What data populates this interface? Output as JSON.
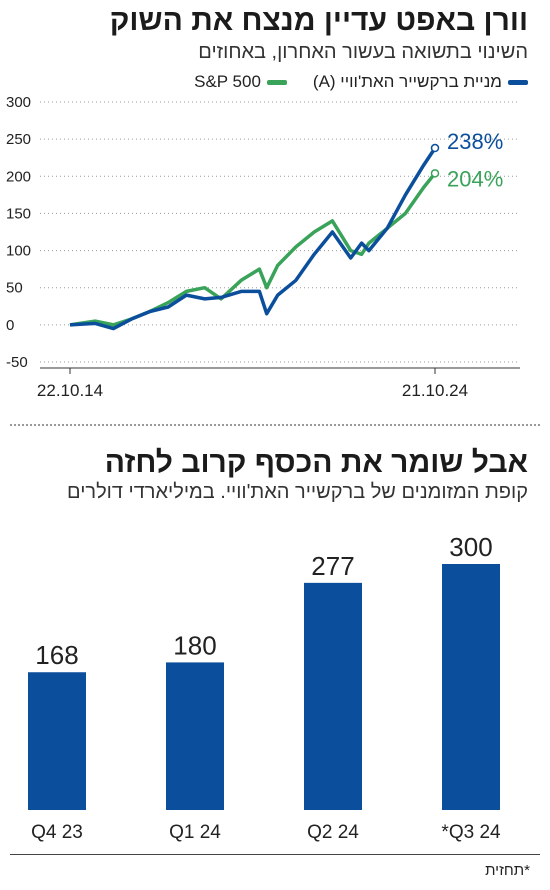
{
  "chart_top": {
    "title": "וורן באפט עדיין מנצח את השוק",
    "subtitle": "השינוי בתשואה בעשור האחרון, באחוזים",
    "legend": {
      "berkshire_label": "מניית ברקשייר האת'וויי (A)",
      "sp_label": "S&P 500"
    },
    "colors": {
      "berkshire": "#0b4f9c",
      "sp": "#3aa35a"
    }
  },
  "chart_bottom": {
    "title": "אבל שומר את הכסף קרוב לחזה",
    "subtitle": "קופת המזומנים של ברקשייר האת'וויי. במיליארדי דולרים",
    "bar_color": "#0b4f9c"
  },
  "footnote": "*תחזית",
  "chart_data": [
    {
      "type": "line",
      "title": "וורן באפט עדיין מנצח את השוק",
      "subtitle": "השינוי בתשואה בעשור האחרון, באחוזים",
      "ylim": [
        -50,
        300
      ],
      "yticks": [
        300,
        250,
        200,
        150,
        100,
        50,
        0,
        -50
      ],
      "xtick_labels": [
        "22.10.14",
        "21.10.24"
      ],
      "grid": true,
      "x": [
        2014.81,
        2015.5,
        2016.0,
        2016.5,
        2017.0,
        2017.5,
        2018.0,
        2018.5,
        2018.95,
        2019.5,
        2020.0,
        2020.2,
        2020.5,
        2021.0,
        2021.5,
        2022.0,
        2022.5,
        2022.8,
        2023.0,
        2023.5,
        2024.0,
        2024.5,
        2024.81
      ],
      "series": [
        {
          "name": "מניית ברקשייר האת'וויי (A)",
          "values": [
            0,
            2,
            -5,
            8,
            18,
            24,
            40,
            35,
            37,
            45,
            45,
            15,
            40,
            60,
            95,
            125,
            90,
            110,
            100,
            130,
            175,
            215,
            238
          ],
          "end_label": "238%"
        },
        {
          "name": "S&P 500",
          "values": [
            0,
            5,
            0,
            8,
            18,
            30,
            45,
            50,
            35,
            60,
            75,
            50,
            80,
            105,
            125,
            140,
            100,
            95,
            110,
            130,
            150,
            185,
            204
          ],
          "end_label": "204%"
        }
      ]
    },
    {
      "type": "bar",
      "title": "אבל שומר את הכסף קרוב לחזה",
      "subtitle": "קופת המזומנים של ברקשייר האת'וויי. במיליארדי דולרים",
      "categories": [
        "Q4 23",
        "Q1 24",
        "Q2 24",
        "*Q3 24"
      ],
      "values": [
        168,
        180,
        277,
        300
      ],
      "value_labels": [
        "168",
        "180",
        "277",
        "300"
      ],
      "ylim": [
        0,
        300
      ]
    }
  ]
}
